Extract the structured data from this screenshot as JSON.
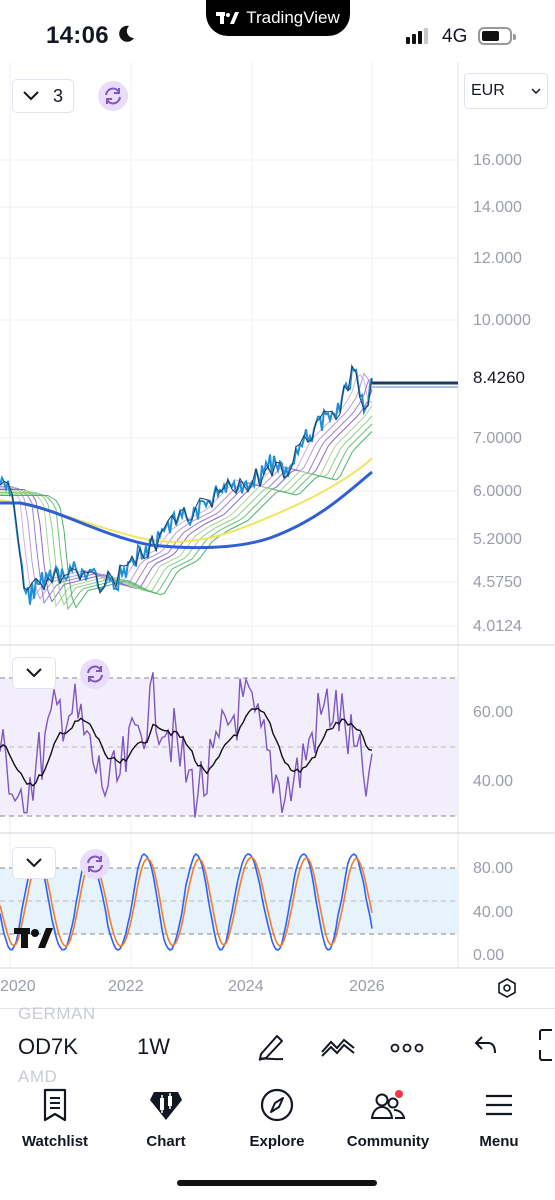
{
  "status_bar": {
    "time": "14:06",
    "network": "4G",
    "app_name": "TradingView"
  },
  "chart": {
    "layout_count": "3",
    "currency": "EUR",
    "price_axis": [
      "16.000",
      "14.000",
      "12.000",
      "10.0000",
      "8.4260",
      "7.0000",
      "6.0000",
      "5.2000",
      "4.5750",
      "4.0124"
    ],
    "current_price": "8.4260",
    "rsi_axis": [
      "60.00",
      "40.00"
    ],
    "stoch_axis": [
      "80.00",
      "40.00",
      "0.00"
    ],
    "x_axis": [
      "2020",
      "2022",
      "2024",
      "2026"
    ],
    "colors": {
      "price_line": "#1e3a5f",
      "candles": "#1f8fd6",
      "sma_long": "#2f5fd7",
      "sma_mid": "#f2e463",
      "rsi": "#7e57c2",
      "stoch_k": "#2962ff",
      "stoch_d": "#f57c28"
    }
  },
  "toolbar": {
    "symbol": "OD7K",
    "timeframe": "1W",
    "ghost_top": "GERMAN",
    "ghost_bottom": "AMD"
  },
  "nav": [
    {
      "label": "Watchlist",
      "icon": "watchlist-icon"
    },
    {
      "label": "Chart",
      "icon": "chart-icon"
    },
    {
      "label": "Explore",
      "icon": "explore-icon"
    },
    {
      "label": "Community",
      "icon": "community-icon"
    },
    {
      "label": "Menu",
      "icon": "menu-icon"
    }
  ]
}
